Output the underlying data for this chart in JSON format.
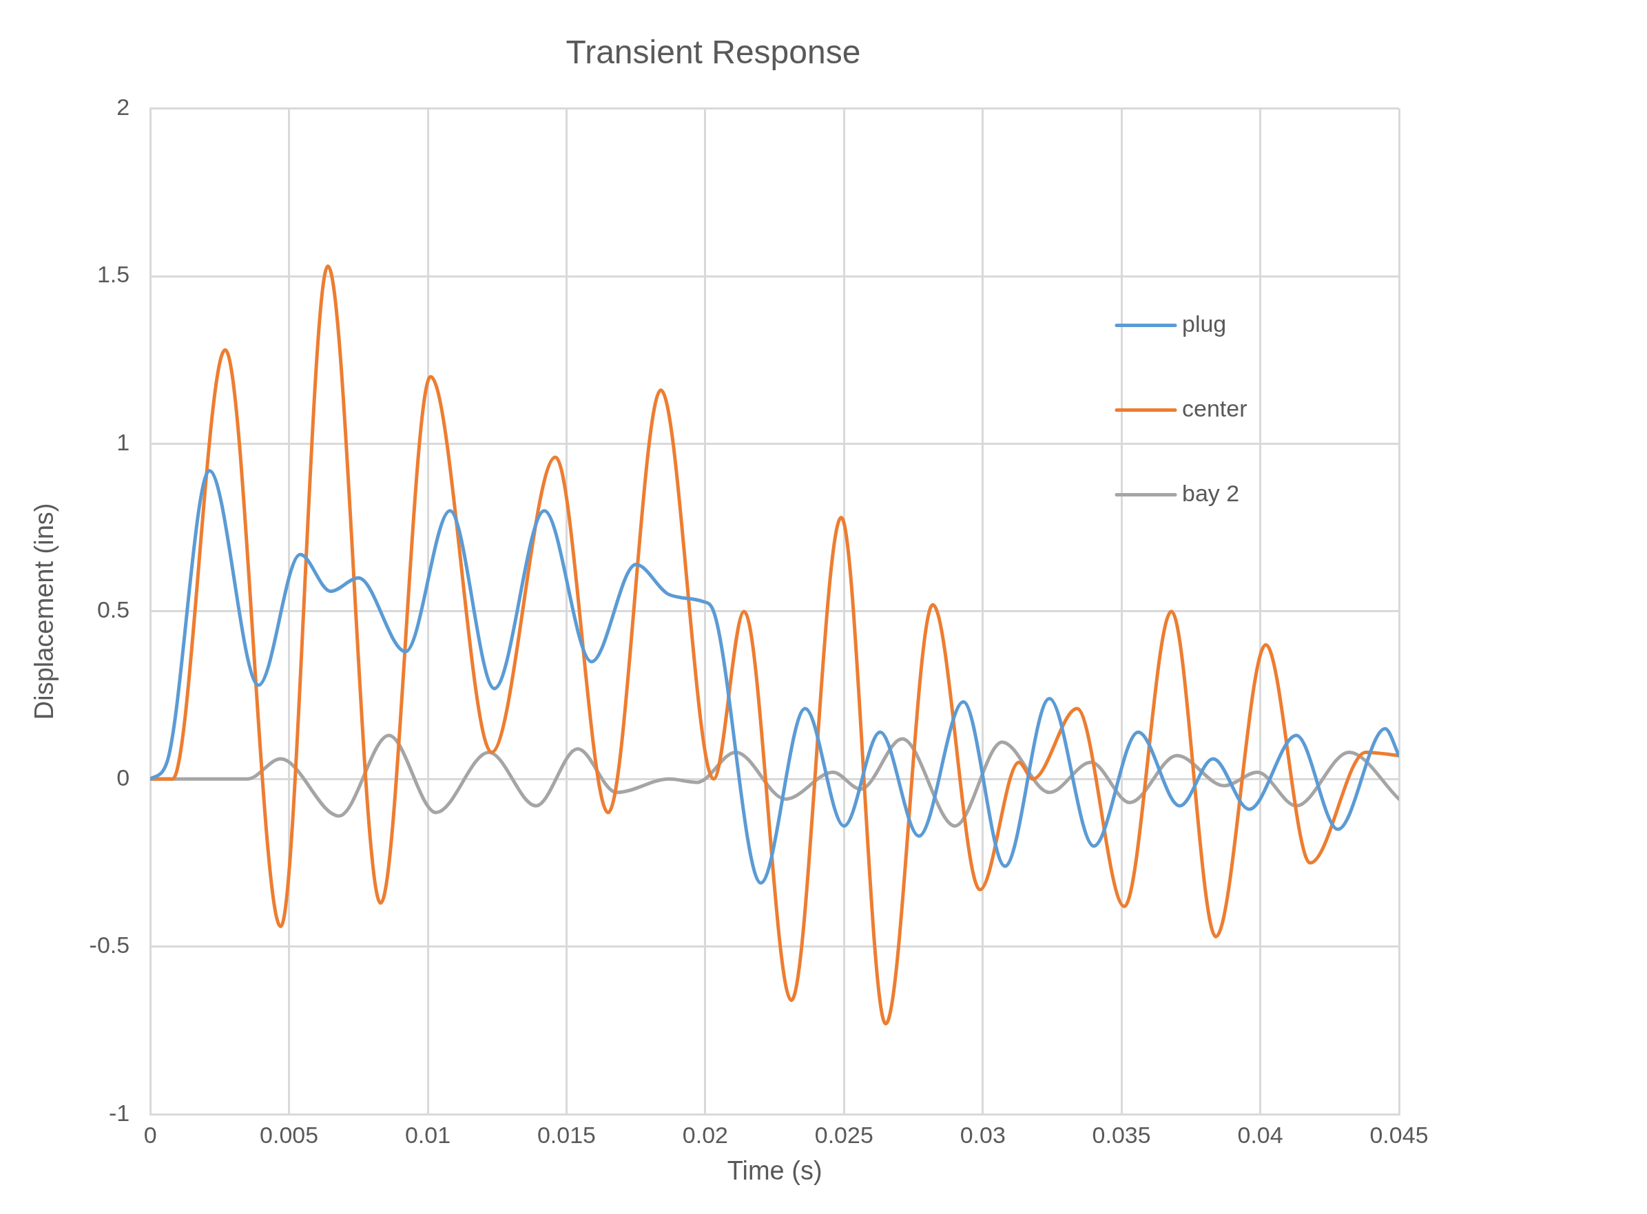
{
  "chart_data": {
    "type": "line",
    "title": "Transient Response",
    "xlabel": "Time (s)",
    "ylabel": "Displacement (ins)",
    "xlim": [
      0,
      0.045
    ],
    "xticks": [
      0,
      0.005,
      0.01,
      0.015,
      0.02,
      0.025,
      0.03,
      0.035,
      0.04,
      0.045
    ],
    "ylim": [
      -1,
      2
    ],
    "yticks": [
      -1,
      -0.5,
      0,
      0.5,
      1,
      1.5,
      2
    ],
    "grid": true,
    "legend": "top right",
    "marker": "none",
    "series": [
      {
        "name": "plug",
        "color": "#5b9bd5",
        "x": [
          0,
          0.0006,
          0.00213,
          0.0039,
          0.0054,
          0.0065,
          0.0075,
          0.0092,
          0.0108,
          0.0124,
          0.0142,
          0.0159,
          0.0175,
          0.0187,
          0.0199,
          0.0203,
          0.022,
          0.0236,
          0.025,
          0.0263,
          0.0277,
          0.0293,
          0.0308,
          0.0324,
          0.034,
          0.0356,
          0.0371,
          0.0383,
          0.0396,
          0.0413,
          0.0428,
          0.0445,
          0.045
        ],
        "values": [
          0,
          0.05,
          0.92,
          0.28,
          0.67,
          0.56,
          0.6,
          0.38,
          0.8,
          0.27,
          0.8,
          0.35,
          0.64,
          0.55,
          0.53,
          0.5,
          -0.31,
          0.21,
          -0.14,
          0.14,
          -0.17,
          0.23,
          -0.26,
          0.24,
          -0.2,
          0.14,
          -0.08,
          0.06,
          -0.09,
          0.13,
          -0.15,
          0.15,
          0.07
        ]
      },
      {
        "name": "center",
        "color": "#ed7d31",
        "x": [
          0,
          0.0008,
          0.0027,
          0.0047,
          0.0064,
          0.0083,
          0.0101,
          0.0123,
          0.0146,
          0.0165,
          0.0184,
          0.0203,
          0.0214,
          0.0231,
          0.0249,
          0.0265,
          0.0282,
          0.0299,
          0.0313,
          0.0318,
          0.0334,
          0.0351,
          0.0368,
          0.0384,
          0.0402,
          0.0418,
          0.0438,
          0.045
        ],
        "values": [
          0,
          0,
          1.28,
          -0.44,
          1.53,
          -0.37,
          1.2,
          0.08,
          0.96,
          -0.1,
          1.16,
          0,
          0.5,
          -0.66,
          0.78,
          -0.73,
          0.52,
          -0.33,
          0.05,
          0,
          0.21,
          -0.38,
          0.5,
          -0.47,
          0.4,
          -0.25,
          0.08,
          0.07
        ]
      },
      {
        "name": "bay 2",
        "color": "#a5a5a5",
        "x": [
          0,
          0.0035,
          0.0047,
          0.0068,
          0.0086,
          0.0103,
          0.0122,
          0.0139,
          0.0154,
          0.0168,
          0.0187,
          0.0197,
          0.0211,
          0.0229,
          0.0246,
          0.0256,
          0.0271,
          0.029,
          0.0307,
          0.0324,
          0.0339,
          0.0353,
          0.037,
          0.0387,
          0.0399,
          0.0413,
          0.0432,
          0.045
        ],
        "values": [
          0,
          0,
          0.06,
          -0.11,
          0.13,
          -0.1,
          0.08,
          -0.08,
          0.09,
          -0.04,
          0,
          -0.01,
          0.08,
          -0.06,
          0.02,
          -0.03,
          0.12,
          -0.14,
          0.11,
          -0.04,
          0.05,
          -0.07,
          0.07,
          -0.02,
          0.02,
          -0.08,
          0.08,
          -0.06
        ]
      }
    ]
  }
}
